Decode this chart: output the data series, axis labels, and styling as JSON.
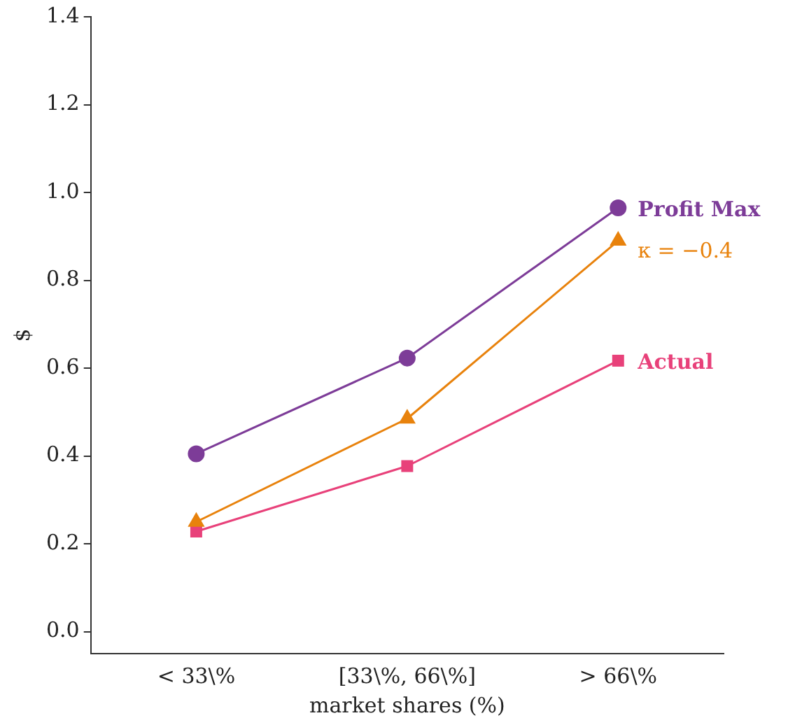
{
  "chart_data": {
    "type": "line",
    "xlabel": "market shares (%)",
    "ylabel": "$",
    "categories": [
      "< 33\\%",
      "[33\\%, 66\\%]",
      "> 66\\%"
    ],
    "series": [
      {
        "name": "Profit Max",
        "color": "#7d3c98",
        "marker": "circle",
        "values": [
          0.405,
          0.623,
          0.965
        ]
      },
      {
        "name": "κ = −0.4",
        "color": "#e8820c",
        "marker": "triangle",
        "values": [
          0.25,
          0.485,
          0.89
        ]
      },
      {
        "name": "Actual",
        "color": "#e8417a",
        "marker": "square",
        "values": [
          0.228,
          0.377,
          0.617
        ]
      }
    ],
    "ylim": [
      -0.05,
      1.4
    ],
    "yticks": [
      {
        "value": 0,
        "label": "0.0"
      },
      {
        "value": 0.2,
        "label": "0.2"
      },
      {
        "value": 0.4,
        "label": "0.4"
      },
      {
        "value": 0.6,
        "label": "0.6"
      },
      {
        "value": 0.8,
        "label": "0.8"
      },
      {
        "value": 1.0,
        "label": "1.0"
      },
      {
        "value": 1.2,
        "label": "1.2"
      },
      {
        "value": 1.4,
        "label": "1.4"
      }
    ],
    "grid": false,
    "legend": false,
    "line_style": "solid"
  }
}
